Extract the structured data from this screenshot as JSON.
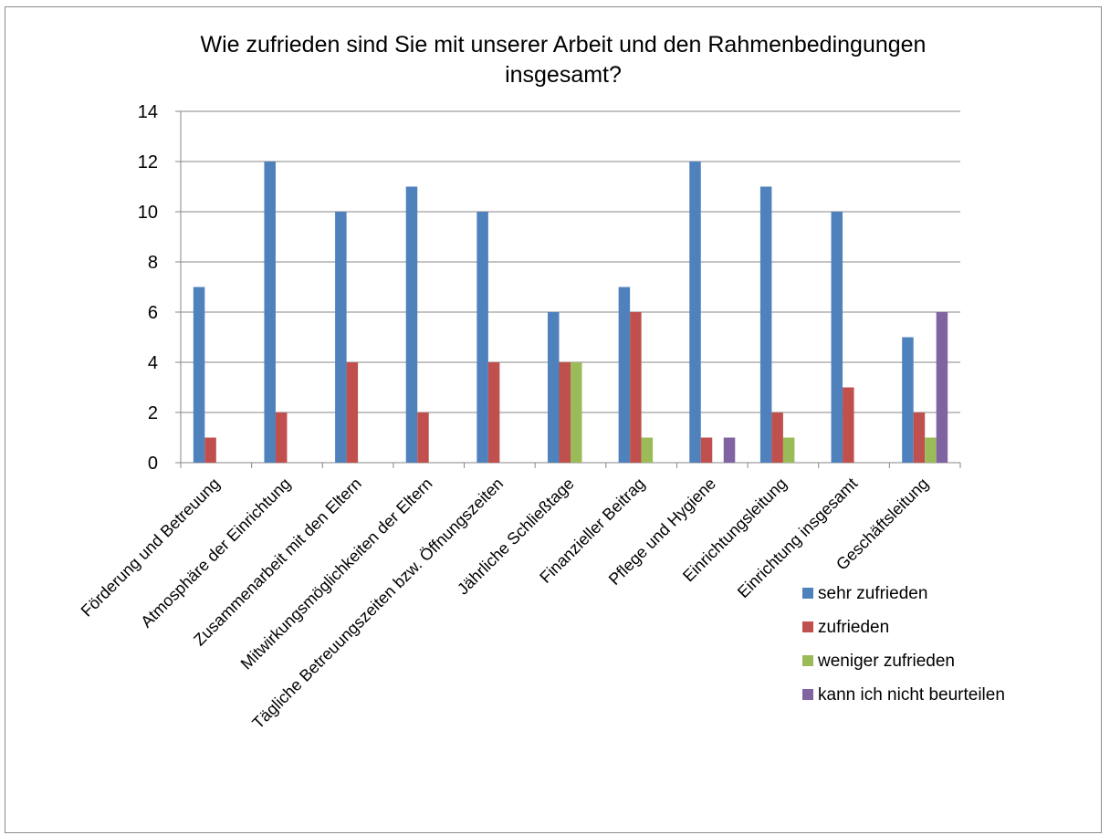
{
  "chart_data": {
    "type": "bar",
    "title": "Wie zufrieden sind Sie mit unserer Arbeit und den Rahmenbedingungen insgesamt?",
    "title_lines": [
      "Wie zufrieden sind Sie mit unserer Arbeit und den Rahmenbedingungen",
      "insgesamt?"
    ],
    "xlabel": "",
    "ylabel": "",
    "ylim": [
      0,
      14
    ],
    "yticks": [
      "0",
      "2",
      "4",
      "6",
      "8",
      "10",
      "12",
      "14"
    ],
    "grid": true,
    "legend_position": "bottom-right",
    "categories": [
      "Förderung und Betreuung",
      "Atmosphäre der Einrichtung",
      "Zusammenarbeit mit den Eltern",
      "Mitwirkungsmöglichkeiten der Eltern",
      "Tägliche Betreuungszeiten bzw. Öffnungszeiten",
      "Jährliche Schließtage",
      "Finanzieller Beitrag",
      "Pflege und Hygiene",
      "Einrichtungsleitung",
      "Einrichtung insgesamt",
      "Geschäftsleitung"
    ],
    "series": [
      {
        "name": "sehr zufrieden",
        "color": "#4f81bd",
        "values": [
          7,
          12,
          10,
          11,
          10,
          6,
          7,
          12,
          11,
          10,
          5
        ]
      },
      {
        "name": "zufrieden",
        "color": "#c0504d",
        "values": [
          1,
          2,
          4,
          2,
          4,
          4,
          6,
          1,
          2,
          3,
          2
        ]
      },
      {
        "name": "weniger zufrieden",
        "color": "#9bbb59",
        "values": [
          0,
          0,
          0,
          0,
          0,
          4,
          1,
          0,
          1,
          0,
          1
        ]
      },
      {
        "name": "kann ich nicht beurteilen",
        "color": "#8064a2",
        "values": [
          0,
          0,
          0,
          0,
          0,
          0,
          0,
          1,
          0,
          0,
          6
        ]
      }
    ]
  }
}
